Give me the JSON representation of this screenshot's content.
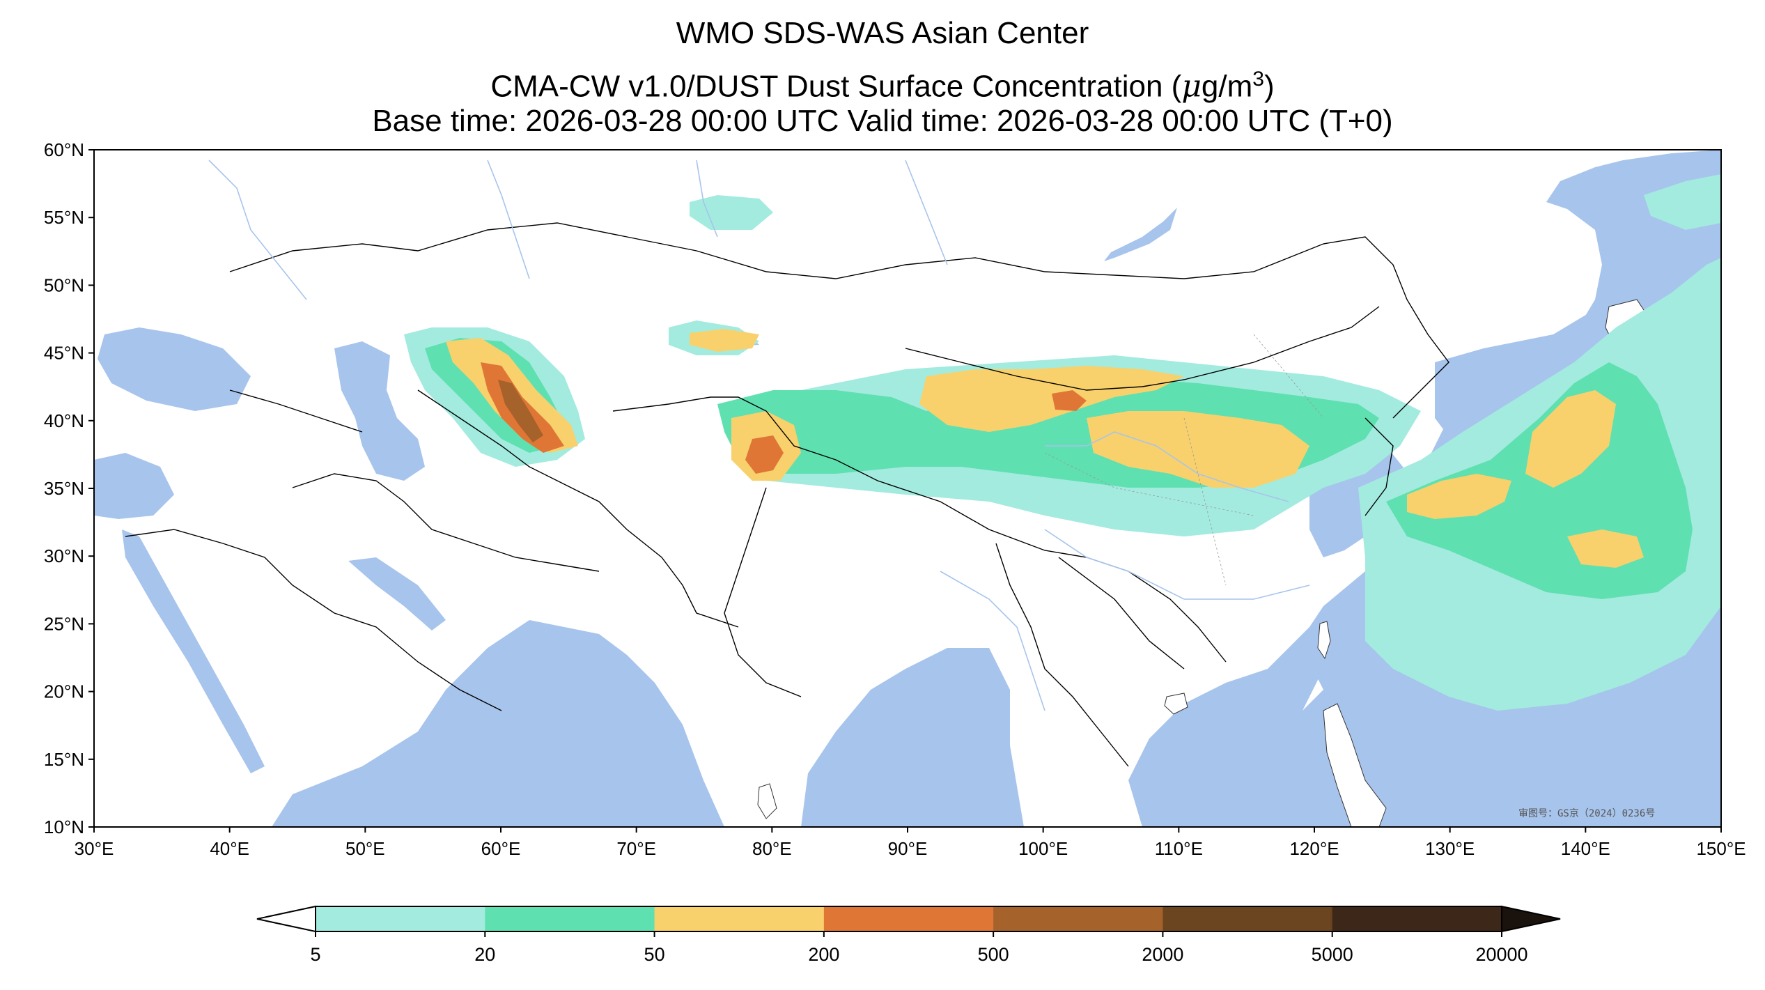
{
  "title": {
    "line1": "WMO SDS-WAS Asian Center",
    "line2_prefix": "CMA-CW v1.0/DUST Dust Surface Concentration (",
    "line2_unit_mu": "μ",
    "line2_unit_rest": "g/m",
    "line2_unit_exp": "3",
    "line2_suffix": ")",
    "line3": "Base time: 2026-03-28 00:00 UTC Valid time: 2026-03-28 00:00 UTC (T+0)"
  },
  "map": {
    "lon_range": [
      30,
      150
    ],
    "lat_range": [
      10,
      60
    ],
    "lon_ticks": [
      "30°E",
      "40°E",
      "50°E",
      "60°E",
      "70°E",
      "80°E",
      "90°E",
      "100°E",
      "110°E",
      "120°E",
      "130°E",
      "140°E",
      "150°E"
    ],
    "lat_ticks": [
      "60°N",
      "55°N",
      "50°N",
      "45°N",
      "40°N",
      "35°N",
      "30°N",
      "25°N",
      "20°N",
      "15°N",
      "10°N"
    ],
    "approval_number": "审图号：GS京（2024）0236号",
    "colors": {
      "water": "#a7c4ec",
      "land": "#ffffff",
      "border": "#000000",
      "river": "#a7c4ec"
    }
  },
  "colorbar": {
    "levels": [
      "5",
      "20",
      "50",
      "200",
      "500",
      "2000",
      "5000",
      "20000"
    ],
    "colors": [
      "#a3ebdf",
      "#5fe0b0",
      "#f8d16c",
      "#e07636",
      "#a5622b",
      "#6b4420",
      "#3d2718"
    ],
    "extend": "both"
  }
}
